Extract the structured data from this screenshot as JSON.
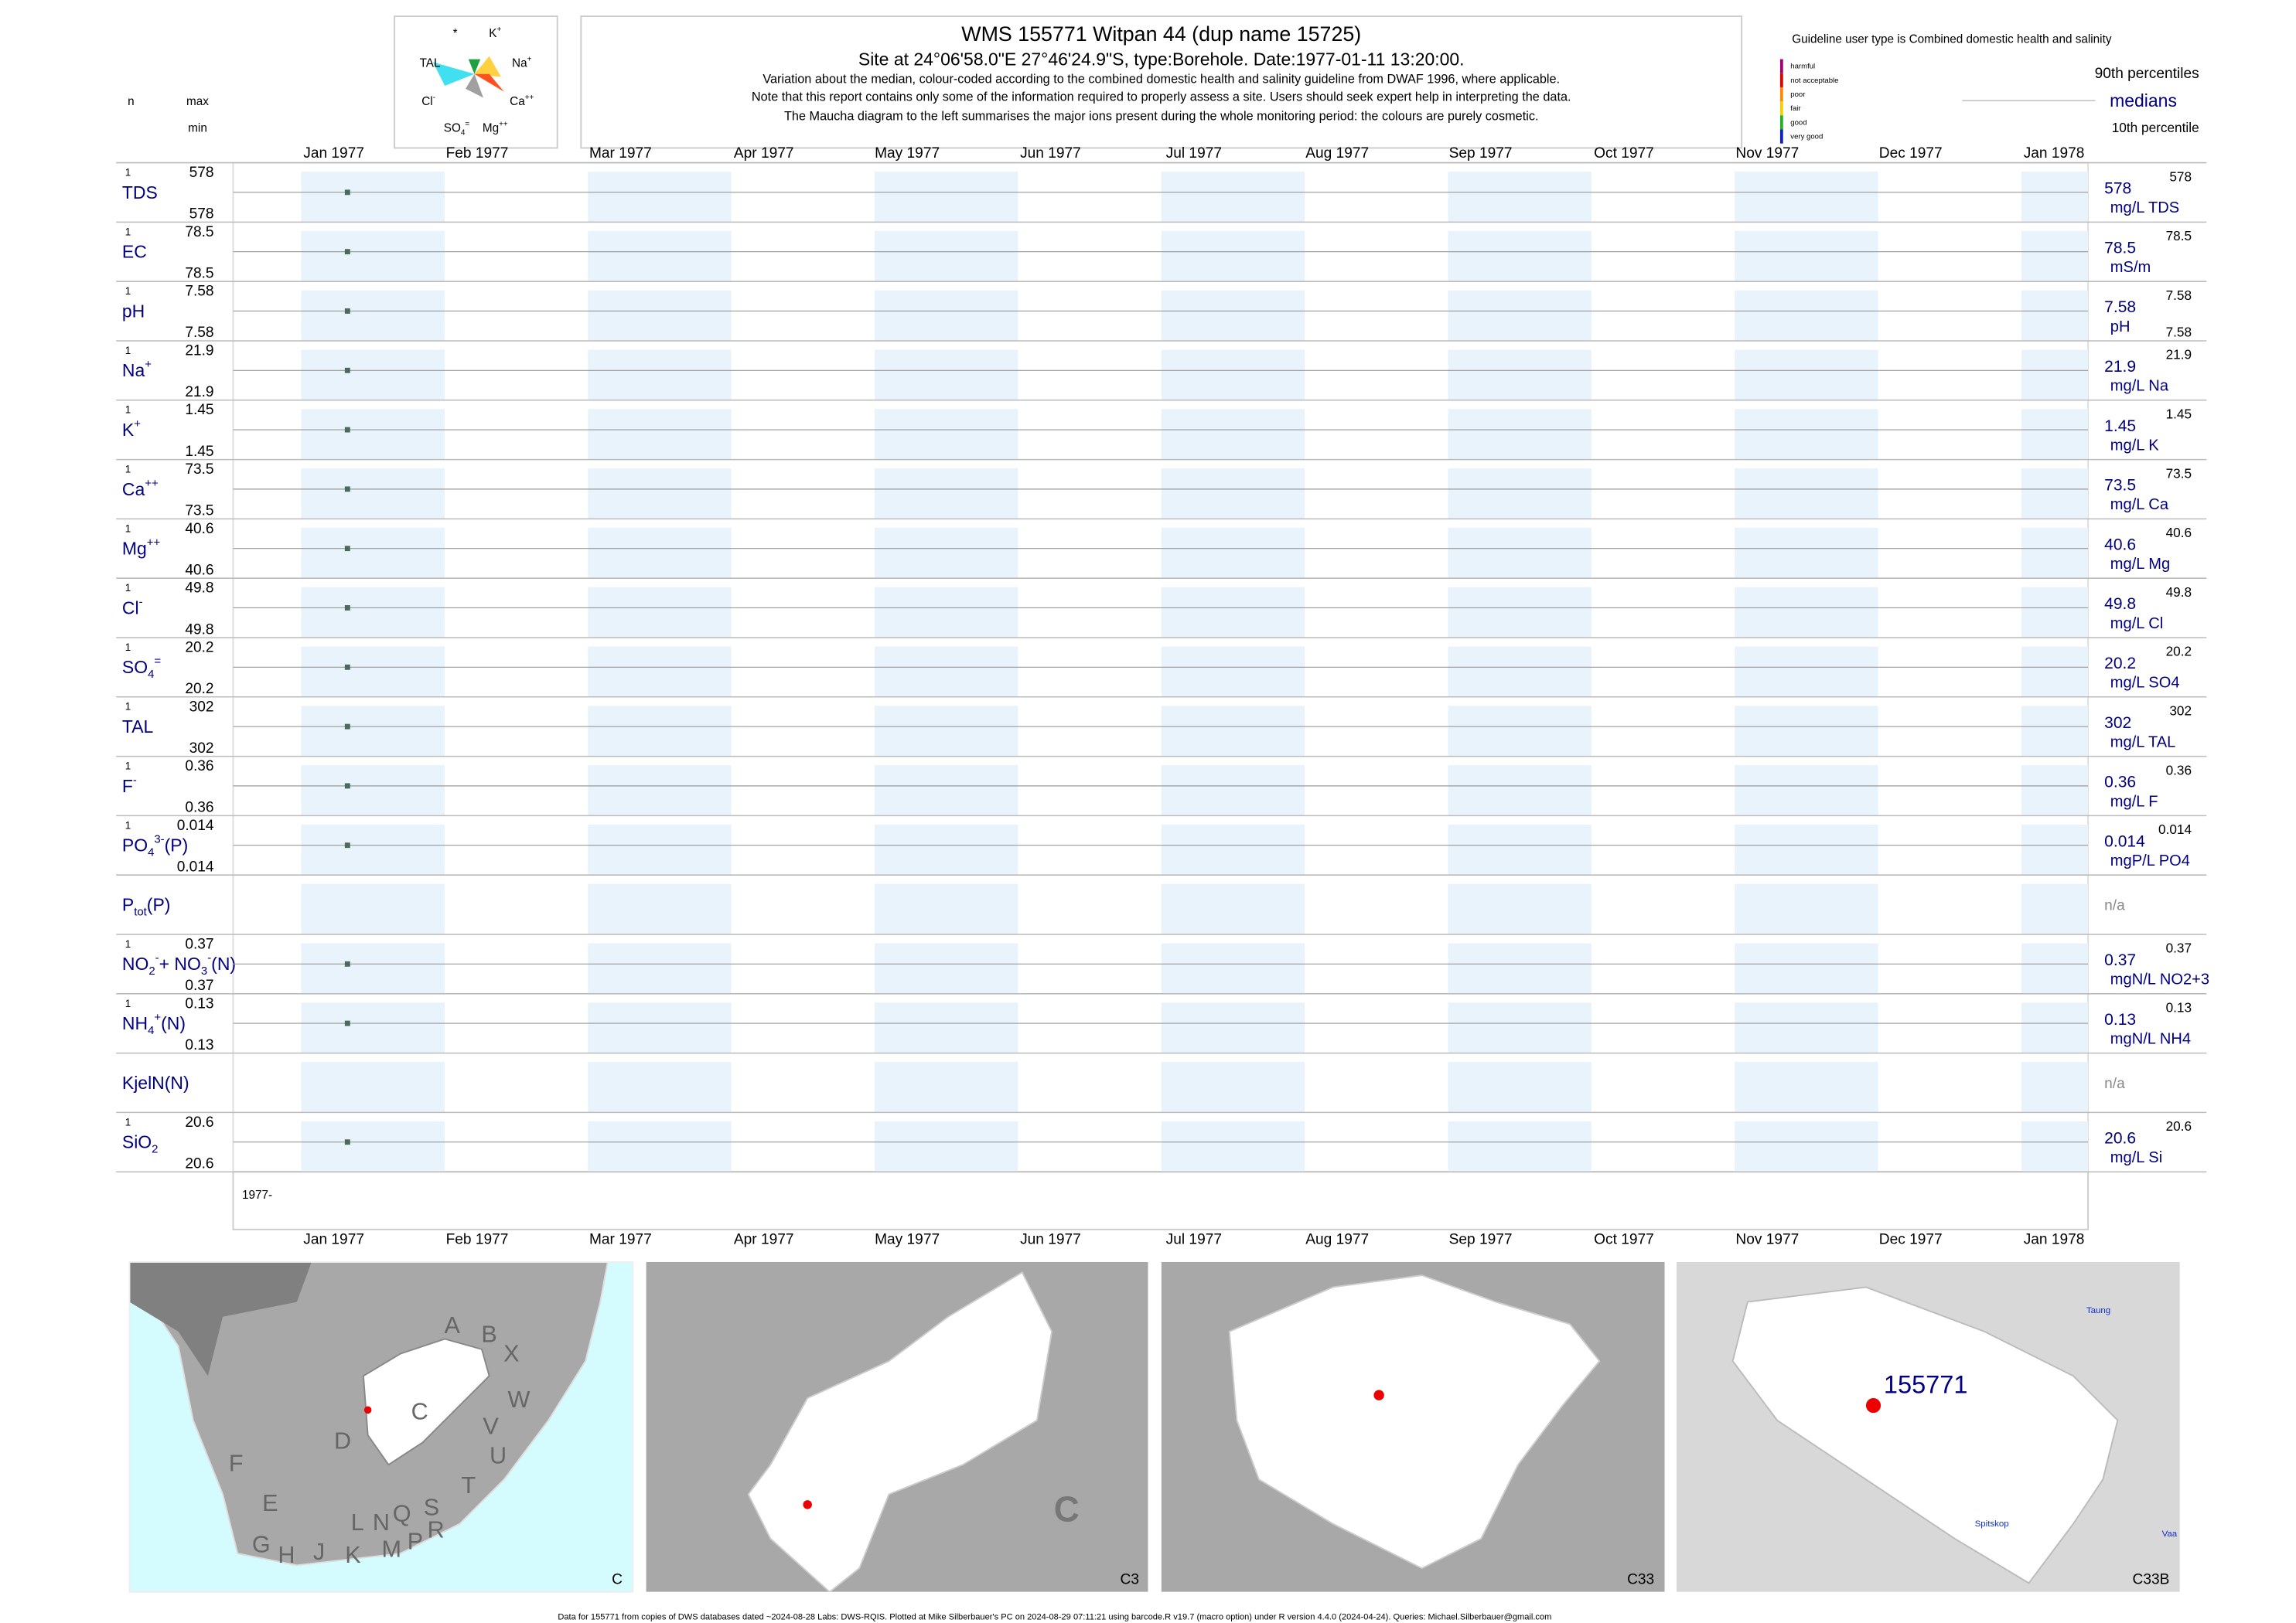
{
  "header": {
    "title": "WMS 155771  Witpan 44 (dup name 15725)",
    "subtitle": "Site at 24°06'58.0\"E 27°46'24.9\"S, type:Borehole. Date:1977-01-11 13:20:00.",
    "notes": [
      "Variation about the median,  colour-coded according to the combined domestic health and salinity guideline from DWAF 1996, where applicable.",
      "Note that this report contains only some of the information required to properly assess a site. Users should seek expert help in interpreting the data.",
      "The Maucha diagram to the left summarises the major ions present during the whole monitoring period: the colours are purely cosmetic."
    ]
  },
  "maucha": {
    "labels": [
      [
        {
          "t": "*"
        }
      ],
      [
        {
          "t": "K"
        },
        {
          "t": "+",
          "s": "sup"
        }
      ],
      [
        {
          "t": "TAL"
        }
      ],
      [
        {
          "t": "Na"
        },
        {
          "t": "+",
          "s": "sup"
        }
      ],
      [
        {
          "t": "Cl"
        },
        {
          "t": "-",
          "s": "sup"
        }
      ],
      [
        {
          "t": "Ca"
        },
        {
          "t": "++",
          "s": "sup"
        }
      ],
      [
        {
          "t": "SO"
        },
        {
          "t": "4",
          "s": "sub"
        },
        {
          "t": "=",
          "s": "sup"
        }
      ],
      [
        {
          "t": "Mg"
        },
        {
          "t": "++",
          "s": "sup"
        }
      ]
    ]
  },
  "column_heads": {
    "n": "n",
    "max": "max",
    "min": "min"
  },
  "legend": {
    "guideline": "Guideline user type is Combined domestic health and salinity",
    "levels": [
      {
        "label": "harmful",
        "color": "#a0007a"
      },
      {
        "label": "not acceptable",
        "color": "#e00000"
      },
      {
        "label": "poor",
        "color": "#ff8a00"
      },
      {
        "label": "fair",
        "color": "#f0d000"
      },
      {
        "label": "good",
        "color": "#20b020"
      },
      {
        "label": "very good",
        "color": "#1020c0"
      }
    ],
    "p90": "90th percentiles",
    "medians": "medians",
    "p10": "10th percentile"
  },
  "months": [
    "Jan 1977",
    "Feb 1977",
    "Mar 1977",
    "Apr 1977",
    "May 1977",
    "Jun 1977",
    "Jul 1977",
    "Aug 1977",
    "Sep 1977",
    "Oct 1977",
    "Nov 1977",
    "Dec 1977",
    "Jan 1978"
  ],
  "year_label": "1977-",
  "rows": [
    {
      "label": [
        {
          "t": "TDS"
        }
      ],
      "n": 1,
      "max": 578,
      "min": 578,
      "median": 578,
      "p90": 578,
      "unit": "mg/L TDS"
    },
    {
      "label": [
        {
          "t": "EC"
        }
      ],
      "n": 1,
      "max": 78.5,
      "min": 78.5,
      "median": 78.5,
      "p90": 78.5,
      "unit": "mS/m"
    },
    {
      "label": [
        {
          "t": "pH"
        }
      ],
      "n": 1,
      "max": 7.58,
      "min": 7.58,
      "median": 7.58,
      "p90": 7.58,
      "p10": 7.58,
      "unit": "pH"
    },
    {
      "label": [
        {
          "t": "Na"
        },
        {
          "t": "+",
          "s": "sup"
        }
      ],
      "n": 1,
      "max": 21.9,
      "min": 21.9,
      "median": 21.9,
      "p90": 21.9,
      "unit": "mg/L Na"
    },
    {
      "label": [
        {
          "t": "K"
        },
        {
          "t": "+",
          "s": "sup"
        }
      ],
      "n": 1,
      "max": 1.45,
      "min": 1.45,
      "median": 1.45,
      "p90": 1.45,
      "unit": "mg/L K"
    },
    {
      "label": [
        {
          "t": "Ca"
        },
        {
          "t": "++",
          "s": "sup"
        }
      ],
      "n": 1,
      "max": 73.5,
      "min": 73.5,
      "median": 73.5,
      "p90": 73.5,
      "unit": "mg/L Ca"
    },
    {
      "label": [
        {
          "t": "Mg"
        },
        {
          "t": "++",
          "s": "sup"
        }
      ],
      "n": 1,
      "max": 40.6,
      "min": 40.6,
      "median": 40.6,
      "p90": 40.6,
      "unit": "mg/L Mg"
    },
    {
      "label": [
        {
          "t": "Cl"
        },
        {
          "t": "-",
          "s": "sup"
        }
      ],
      "n": 1,
      "max": 49.8,
      "min": 49.8,
      "median": 49.8,
      "p90": 49.8,
      "unit": "mg/L Cl"
    },
    {
      "label": [
        {
          "t": "SO"
        },
        {
          "t": "4",
          "s": "sub"
        },
        {
          "t": "=",
          "s": "sup"
        }
      ],
      "n": 1,
      "max": 20.2,
      "min": 20.2,
      "median": 20.2,
      "p90": 20.2,
      "unit": "mg/L SO4"
    },
    {
      "label": [
        {
          "t": "TAL"
        }
      ],
      "n": 1,
      "max": 302,
      "min": 302,
      "median": 302,
      "p90": 302,
      "unit": "mg/L TAL"
    },
    {
      "label": [
        {
          "t": "F"
        },
        {
          "t": "-",
          "s": "sup"
        }
      ],
      "n": 1,
      "max": 0.36,
      "min": 0.36,
      "median": 0.36,
      "p90": 0.36,
      "unit": "mg/L F"
    },
    {
      "label": [
        {
          "t": "PO"
        },
        {
          "t": "4",
          "s": "sub"
        },
        {
          "t": "3-",
          "s": "sup"
        },
        {
          "t": "(P)"
        }
      ],
      "n": 1,
      "max": 0.014,
      "min": 0.014,
      "median": 0.014,
      "p90": 0.014,
      "unit": "mgP/L PO4"
    },
    {
      "label": [
        {
          "t": "P"
        },
        {
          "t": "tot",
          "s": "sub"
        },
        {
          "t": "(P)"
        }
      ],
      "na": "n/a"
    },
    {
      "label": [
        {
          "t": "NO"
        },
        {
          "t": "2",
          "s": "sub"
        },
        {
          "t": "-",
          "s": "sup"
        },
        {
          "t": "+ NO"
        },
        {
          "t": "3",
          "s": "sub"
        },
        {
          "t": "-",
          "s": "sup"
        },
        {
          "t": "(N)"
        }
      ],
      "n": 1,
      "max": 0.37,
      "min": 0.37,
      "median": 0.37,
      "p90": 0.37,
      "unit": "mgN/L NO2+3"
    },
    {
      "label": [
        {
          "t": "NH"
        },
        {
          "t": "4",
          "s": "sub"
        },
        {
          "t": "+",
          "s": "sup"
        },
        {
          "t": "(N)"
        }
      ],
      "n": 1,
      "max": 0.13,
      "min": 0.13,
      "median": 0.13,
      "p90": 0.13,
      "unit": "mgN/L NH4"
    },
    {
      "label": [
        {
          "t": "KjelN(N)"
        }
      ],
      "na": "n/a"
    },
    {
      "label": [
        {
          "t": "SiO"
        },
        {
          "t": "2",
          "s": "sub"
        }
      ],
      "n": 1,
      "max": 20.6,
      "min": 20.6,
      "median": 20.6,
      "p90": 20.6,
      "unit": "mg/L Si"
    }
  ],
  "maps": [
    {
      "label": "C",
      "letters": [
        "A",
        "B",
        "X",
        "W",
        "C",
        "D",
        "V",
        "U",
        "T",
        "S",
        "R",
        "Q",
        "P",
        "N",
        "M",
        "L",
        "K",
        "J",
        "H",
        "G",
        "F",
        "E"
      ]
    },
    {
      "label": "C3",
      "letters": [
        "C"
      ]
    },
    {
      "label": "C33",
      "letters": []
    },
    {
      "label": "C33B",
      "letters": [
        "155771",
        "Taung",
        "Spitskop",
        "Vaa"
      ]
    }
  ],
  "footer": "Data for 155771 from copies of DWS databases dated ~2024-08-28 Labs: DWS-RQIS. Plotted at Mike Silberbauer's PC on 2024-08-29 07:11:21 using barcode.R v19.7 (macro option) under R version 4.4.0 (2024-04-24). Queries: Michael.Silberbauer@gmail.com"
}
